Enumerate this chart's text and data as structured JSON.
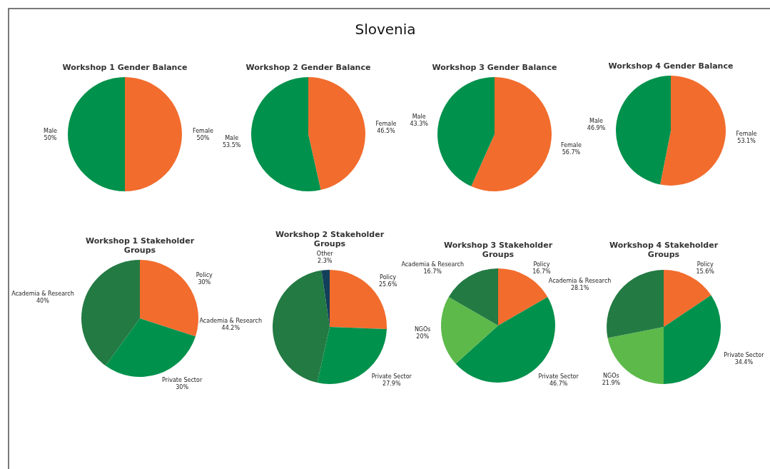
{
  "chart_data": [
    {
      "type": "other",
      "title": "Slovenia"
    },
    {
      "type": "pie",
      "title": "Workshop 1 Gender Balance",
      "categories": [
        "Female",
        "Male"
      ],
      "values": [
        50,
        50
      ],
      "colors": [
        "#f26c2d",
        "#00914c"
      ],
      "value_labels": [
        "50%",
        "50%"
      ]
    },
    {
      "type": "pie",
      "title": "Workshop 2 Gender Balance",
      "categories": [
        "Female",
        "Male"
      ],
      "values": [
        46.5,
        53.5
      ],
      "colors": [
        "#f26c2d",
        "#00914c"
      ],
      "value_labels": [
        "46.5%",
        "53.5%"
      ]
    },
    {
      "type": "pie",
      "title": "Workshop 3 Gender Balance",
      "categories": [
        "Female",
        "Male"
      ],
      "values": [
        56.7,
        43.3
      ],
      "colors": [
        "#f26c2d",
        "#00914c"
      ],
      "value_labels": [
        "56.7%",
        "43.3%"
      ]
    },
    {
      "type": "pie",
      "title": "Workshop 4 Gender Balance",
      "categories": [
        "Female",
        "Male"
      ],
      "values": [
        53.1,
        46.9
      ],
      "colors": [
        "#f26c2d",
        "#00914c"
      ],
      "value_labels": [
        "53.1%",
        "46.9%"
      ]
    },
    {
      "type": "pie",
      "title": "Workshop 1 Stakeholder Groups",
      "categories": [
        "Policy",
        "Private Sector",
        "Academia & Research"
      ],
      "values": [
        30,
        30,
        40
      ],
      "colors": [
        "#f26c2d",
        "#00914c",
        "#237a43"
      ],
      "value_labels": [
        "30%",
        "30%",
        "40%"
      ]
    },
    {
      "type": "pie",
      "title": "Workshop 2 Stakeholder Groups",
      "categories": [
        "Policy",
        "Private Sector",
        "Academia & Research",
        "Other"
      ],
      "values": [
        25.6,
        27.9,
        44.2,
        2.3
      ],
      "colors": [
        "#f26c2d",
        "#00914c",
        "#237a43",
        "#123f5a"
      ],
      "value_labels": [
        "25.6%",
        "27.9%",
        "44.2%",
        "2.3%"
      ]
    },
    {
      "type": "pie",
      "title": "Workshop 3 Stakeholder Groups",
      "categories": [
        "Policy",
        "Private Sector",
        "NGOs",
        "Academia & Research"
      ],
      "values": [
        16.7,
        46.7,
        20,
        16.7
      ],
      "colors": [
        "#f26c2d",
        "#00914c",
        "#5cb94a",
        "#237a43"
      ],
      "value_labels": [
        "16.7%",
        "46.7%",
        "20%",
        "16.7%"
      ]
    },
    {
      "type": "pie",
      "title": "Workshop 4 Stakeholder Groups",
      "categories": [
        "Policy",
        "Private Sector",
        "NGOs",
        "Academia & Research"
      ],
      "values": [
        15.6,
        34.4,
        21.9,
        28.1
      ],
      "colors": [
        "#f26c2d",
        "#00914c",
        "#5cb94a",
        "#237a43"
      ],
      "value_labels": [
        "15.6%",
        "34.4%",
        "21.9%",
        "28.1%"
      ]
    }
  ]
}
